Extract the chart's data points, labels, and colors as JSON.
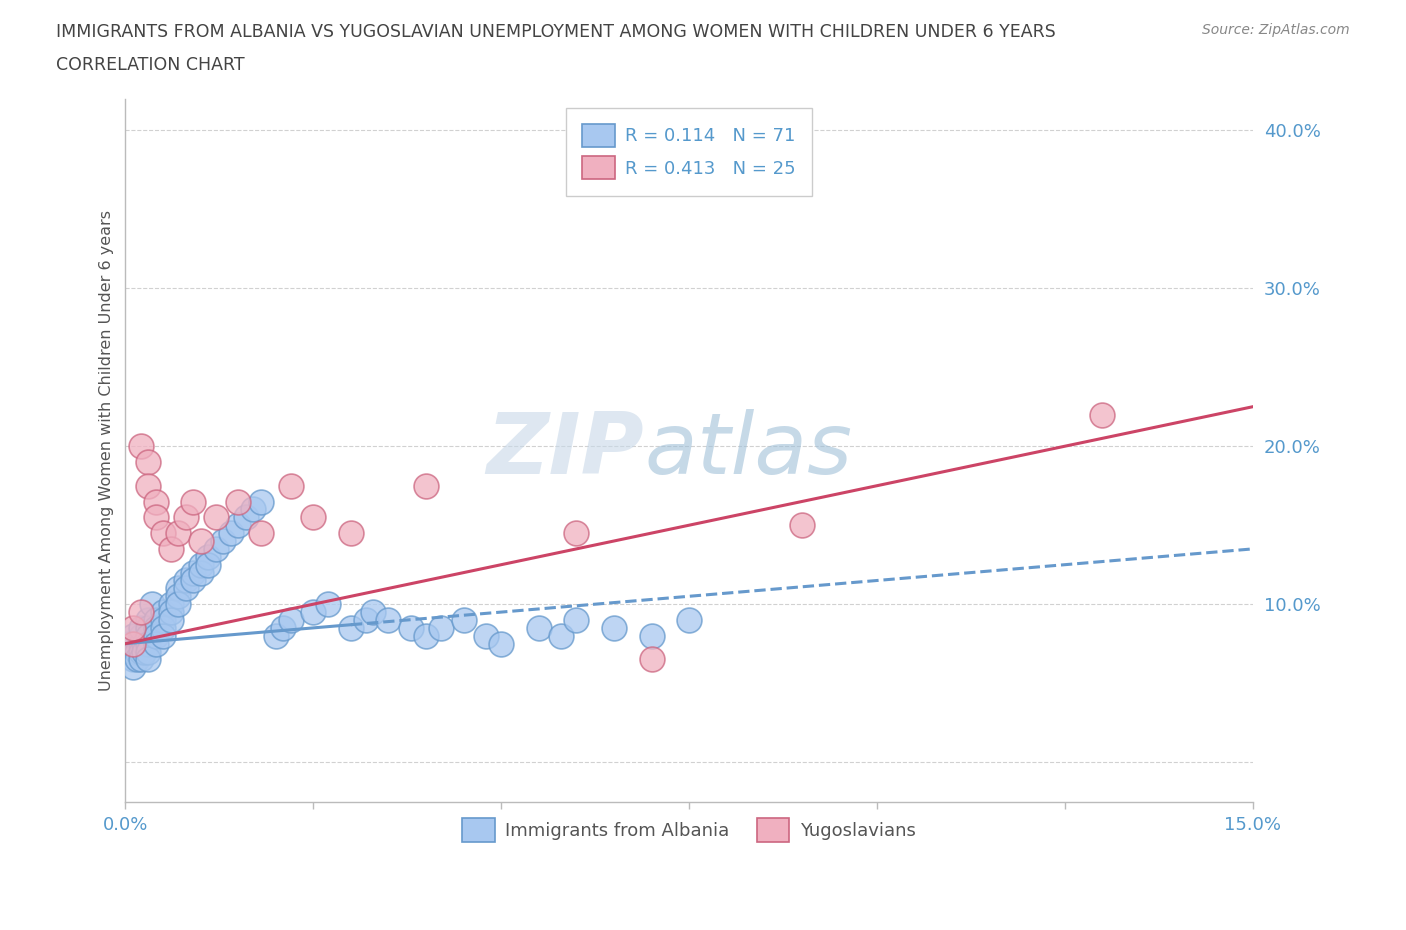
{
  "title_line1": "IMMIGRANTS FROM ALBANIA VS YUGOSLAVIAN UNEMPLOYMENT AMONG WOMEN WITH CHILDREN UNDER 6 YEARS",
  "title_line2": "CORRELATION CHART",
  "source_text": "Source: ZipAtlas.com",
  "ylabel": "Unemployment Among Women with Children Under 6 years",
  "xlim": [
    0.0,
    0.15
  ],
  "ylim": [
    -0.025,
    0.42
  ],
  "xticks": [
    0.0,
    0.025,
    0.05,
    0.075,
    0.1,
    0.125,
    0.15
  ],
  "xticklabels": [
    "0.0%",
    "",
    "",
    "",
    "",
    "",
    "15.0%"
  ],
  "yticks": [
    0.0,
    0.1,
    0.2,
    0.3,
    0.4
  ],
  "yticklabels": [
    "",
    "10.0%",
    "20.0%",
    "30.0%",
    "40.0%"
  ],
  "legend_r1": "R = 0.114   N = 71",
  "legend_r2": "R = 0.413   N = 25",
  "color_blue": "#a8c8f0",
  "color_blue_edge": "#6699cc",
  "color_pink": "#f0b0c0",
  "color_pink_edge": "#cc6680",
  "color_line_blue": "#6699cc",
  "color_line_pink": "#cc4466",
  "grid_color": "#cccccc",
  "background": "#ffffff",
  "title_color": "#444444",
  "ylabel_color": "#555555",
  "tick_label_color": "#5599cc",
  "source_color": "#888888",
  "watermark_color": "#d8e8f0",
  "albania_x": [
    0.0005,
    0.001,
    0.001,
    0.001,
    0.001,
    0.0015,
    0.0015,
    0.002,
    0.002,
    0.002,
    0.002,
    0.002,
    0.0025,
    0.0025,
    0.003,
    0.003,
    0.003,
    0.003,
    0.003,
    0.003,
    0.0035,
    0.004,
    0.004,
    0.004,
    0.004,
    0.005,
    0.005,
    0.005,
    0.005,
    0.006,
    0.006,
    0.006,
    0.007,
    0.007,
    0.007,
    0.008,
    0.008,
    0.009,
    0.009,
    0.01,
    0.01,
    0.011,
    0.011,
    0.012,
    0.013,
    0.014,
    0.015,
    0.016,
    0.017,
    0.018,
    0.02,
    0.021,
    0.022,
    0.025,
    0.027,
    0.03,
    0.032,
    0.033,
    0.035,
    0.038,
    0.04,
    0.042,
    0.045,
    0.048,
    0.05,
    0.055,
    0.058,
    0.06,
    0.065,
    0.07,
    0.075
  ],
  "albania_y": [
    0.075,
    0.065,
    0.07,
    0.08,
    0.06,
    0.07,
    0.065,
    0.08,
    0.075,
    0.07,
    0.065,
    0.085,
    0.075,
    0.07,
    0.09,
    0.085,
    0.08,
    0.075,
    0.07,
    0.065,
    0.1,
    0.09,
    0.085,
    0.08,
    0.075,
    0.095,
    0.09,
    0.085,
    0.08,
    0.1,
    0.095,
    0.09,
    0.11,
    0.105,
    0.1,
    0.115,
    0.11,
    0.12,
    0.115,
    0.125,
    0.12,
    0.13,
    0.125,
    0.135,
    0.14,
    0.145,
    0.15,
    0.155,
    0.16,
    0.165,
    0.08,
    0.085,
    0.09,
    0.095,
    0.1,
    0.085,
    0.09,
    0.095,
    0.09,
    0.085,
    0.08,
    0.085,
    0.09,
    0.08,
    0.075,
    0.085,
    0.08,
    0.09,
    0.085,
    0.08,
    0.09
  ],
  "yugo_x": [
    0.001,
    0.001,
    0.002,
    0.002,
    0.003,
    0.003,
    0.004,
    0.004,
    0.005,
    0.006,
    0.007,
    0.008,
    0.009,
    0.01,
    0.012,
    0.015,
    0.018,
    0.022,
    0.025,
    0.03,
    0.04,
    0.06,
    0.07,
    0.09,
    0.13
  ],
  "yugo_y": [
    0.075,
    0.085,
    0.095,
    0.2,
    0.19,
    0.175,
    0.165,
    0.155,
    0.145,
    0.135,
    0.145,
    0.155,
    0.165,
    0.14,
    0.155,
    0.165,
    0.145,
    0.175,
    0.155,
    0.145,
    0.175,
    0.145,
    0.065,
    0.15,
    0.22
  ],
  "trend_blue_x0": 0.0,
  "trend_blue_y0": 0.075,
  "trend_blue_x1": 0.15,
  "trend_blue_y1": 0.135,
  "trend_pink_x0": 0.0,
  "trend_pink_y0": 0.075,
  "trend_pink_x1": 0.15,
  "trend_pink_y1": 0.225
}
